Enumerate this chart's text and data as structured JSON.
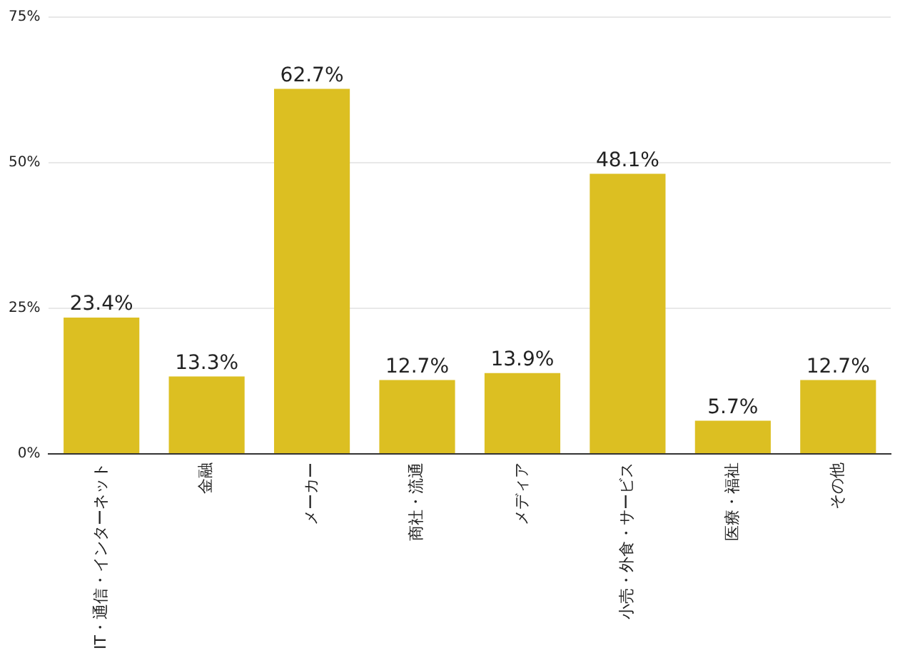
{
  "chart_data": {
    "type": "bar",
    "categories": [
      "IT・通信・インターネット",
      "金融",
      "メーカー",
      "商社・流通",
      "メディア",
      "小売・外食・サービス",
      "医療・福祉",
      "その他"
    ],
    "values": [
      23.4,
      13.3,
      62.7,
      12.7,
      13.9,
      48.1,
      5.7,
      12.7
    ],
    "value_labels": [
      "23.4%",
      "13.3%",
      "62.7%",
      "12.7%",
      "13.9%",
      "48.1%",
      "5.7%",
      "12.7%"
    ],
    "color": "#dcbf22",
    "ylim": [
      0,
      75
    ],
    "yticks": [
      {
        "value": 0,
        "label": "0%"
      },
      {
        "value": 25,
        "label": "25%"
      },
      {
        "value": 50,
        "label": "50%"
      },
      {
        "value": 75,
        "label": "75%"
      }
    ],
    "grid": "y",
    "legend": false
  }
}
